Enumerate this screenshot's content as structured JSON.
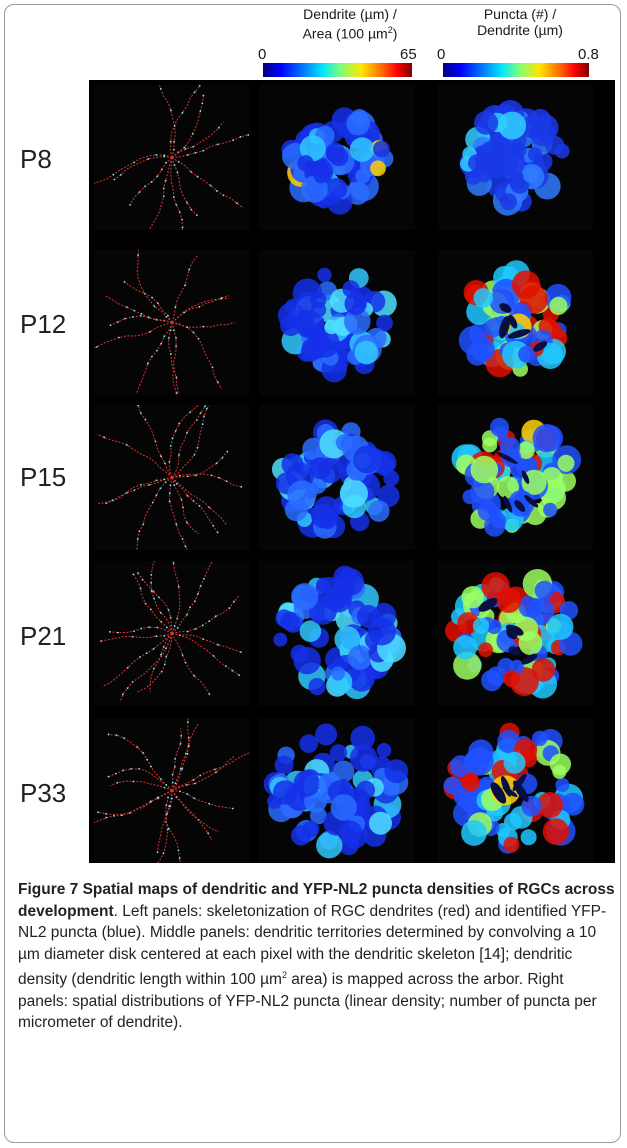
{
  "colorbars": {
    "dendrite": {
      "title_line1": "Dendrite (µm) /",
      "title_line2": "Area (100 µm",
      "title_sup": "2",
      "title_end": ")",
      "min": "0",
      "max": "65"
    },
    "puncta": {
      "title_line1": "Puncta (#) /",
      "title_line2": "Dendrite (µm)",
      "min": "0",
      "max": "0.8"
    }
  },
  "rows": [
    {
      "label": "P8"
    },
    {
      "label": "P12"
    },
    {
      "label": "P15"
    },
    {
      "label": "P21"
    },
    {
      "label": "P33"
    }
  ],
  "caption": {
    "title": "Figure 7 Spatial maps of dendritic and YFP-NL2 puncta densities of RGCs across development",
    "text_a": ". Left panels: skeletonization of RGC dendrites (red) and identified YFP-NL2 puncta (blue). Middle panels: dendritic territories determined by convolving a 10 µm diameter disk centered at each pixel with the dendritic skeleton [14]; dendritic density (dendritic length within 100 µm",
    "sup": "2",
    "text_b": " area) is mapped across the arbor. Right panels: spatial distributions of YFP-NL2 puncta (linear density; number of puncta per micrometer of dendrite)."
  },
  "colors": {
    "background": "#000000",
    "skeleton_red": "#d2382c",
    "puncta_cyan": "#7fe6ff",
    "density_low": "#1a2fe0",
    "density_high": "#ff2a00"
  }
}
